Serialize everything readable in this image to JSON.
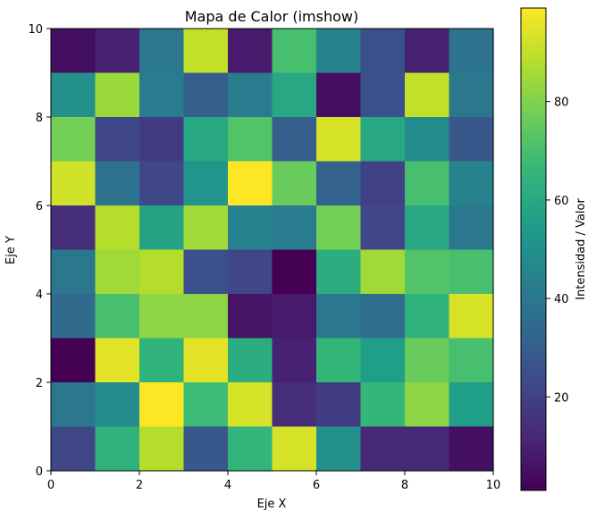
{
  "chart_data": {
    "type": "heatmap",
    "title": "Mapa de Calor (imshow)",
    "xlabel": "Eje X",
    "ylabel": "Eje Y",
    "xlim": [
      0,
      10
    ],
    "ylim": [
      0,
      10
    ],
    "xticks": [
      "0",
      "2",
      "4",
      "6",
      "8",
      "10"
    ],
    "yticks": [
      "0",
      "2",
      "4",
      "6",
      "8",
      "10"
    ],
    "colormap": "viridis",
    "colorbar": {
      "label": "Intensidad / Valor",
      "range": [
        1,
        99
      ],
      "ticks": [
        "20",
        "40",
        "60",
        "80"
      ],
      "tick_values": [
        20,
        40,
        60,
        80
      ]
    },
    "rows_top_to_bottom": [
      [
        5,
        10,
        40,
        90,
        8,
        70,
        45,
        25,
        10,
        38
      ],
      [
        50,
        84,
        42,
        30,
        42,
        60,
        5,
        25,
        90,
        40
      ],
      [
        78,
        22,
        18,
        60,
        72,
        30,
        93,
        60,
        48,
        28
      ],
      [
        92,
        38,
        22,
        52,
        99,
        76,
        32,
        20,
        70,
        45
      ],
      [
        14,
        88,
        58,
        85,
        44,
        42,
        78,
        22,
        60,
        40
      ],
      [
        40,
        85,
        88,
        25,
        22,
        1,
        62,
        85,
        72,
        70
      ],
      [
        35,
        70,
        82,
        82,
        6,
        8,
        40,
        36,
        64,
        93
      ],
      [
        1,
        95,
        64,
        95,
        62,
        10,
        66,
        56,
        76,
        70
      ],
      [
        40,
        48,
        99,
        68,
        93,
        14,
        18,
        66,
        82,
        56
      ],
      [
        22,
        64,
        88,
        28,
        65,
        93,
        50,
        12,
        12,
        5
      ]
    ]
  }
}
